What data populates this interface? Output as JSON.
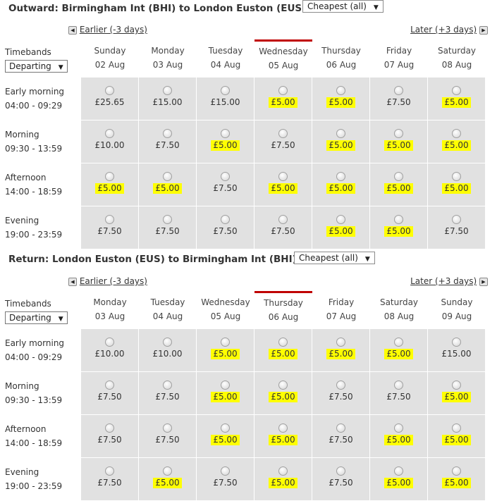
{
  "outward": {
    "title": "Outward: Birmingham Int (BHI) to London Euston (EUS)",
    "filter": "Cheapest (all)",
    "earlier": "Earlier (-3 days)",
    "later": "Later (+3 days)",
    "timebands_label": "Timebands",
    "departing": "Departing",
    "selected_day_index": 3,
    "days": [
      {
        "name": "Sunday",
        "date": "02 Aug"
      },
      {
        "name": "Monday",
        "date": "03 Aug"
      },
      {
        "name": "Tuesday",
        "date": "04 Aug"
      },
      {
        "name": "Wednesday",
        "date": "05 Aug"
      },
      {
        "name": "Thursday",
        "date": "06 Aug"
      },
      {
        "name": "Friday",
        "date": "07 Aug"
      },
      {
        "name": "Saturday",
        "date": "08 Aug"
      }
    ],
    "bands": [
      {
        "name": "Early morning",
        "time": "04:00 - 09:29",
        "prices": [
          "£25.65",
          "£15.00",
          "£15.00",
          "£5.00",
          "£5.00",
          "£7.50",
          "£5.00"
        ],
        "highlight": [
          false,
          false,
          false,
          true,
          true,
          false,
          true
        ]
      },
      {
        "name": "Morning",
        "time": "09:30 - 13:59",
        "prices": [
          "£10.00",
          "£7.50",
          "£5.00",
          "£7.50",
          "£5.00",
          "£5.00",
          "£5.00"
        ],
        "highlight": [
          false,
          false,
          true,
          false,
          true,
          true,
          true
        ]
      },
      {
        "name": "Afternoon",
        "time": "14:00 - 18:59",
        "prices": [
          "£5.00",
          "£5.00",
          "£7.50",
          "£5.00",
          "£5.00",
          "£5.00",
          "£5.00"
        ],
        "highlight": [
          true,
          true,
          false,
          true,
          true,
          true,
          true
        ]
      },
      {
        "name": "Evening",
        "time": "19:00 - 23:59",
        "prices": [
          "£7.50",
          "£7.50",
          "£7.50",
          "£7.50",
          "£5.00",
          "£5.00",
          "£7.50"
        ],
        "highlight": [
          false,
          false,
          false,
          false,
          true,
          true,
          false
        ]
      }
    ]
  },
  "return": {
    "title": "Return: London Euston (EUS) to Birmingham Int (BHI)",
    "filter": "Cheapest (all)",
    "earlier": "Earlier (-3 days)",
    "later": "Later (+3 days)",
    "timebands_label": "Timebands",
    "departing": "Departing",
    "selected_day_index": 3,
    "days": [
      {
        "name": "Monday",
        "date": "03 Aug"
      },
      {
        "name": "Tuesday",
        "date": "04 Aug"
      },
      {
        "name": "Wednesday",
        "date": "05 Aug"
      },
      {
        "name": "Thursday",
        "date": "06 Aug"
      },
      {
        "name": "Friday",
        "date": "07 Aug"
      },
      {
        "name": "Saturday",
        "date": "08 Aug"
      },
      {
        "name": "Sunday",
        "date": "09 Aug"
      }
    ],
    "bands": [
      {
        "name": "Early morning",
        "time": "04:00 - 09:29",
        "prices": [
          "£10.00",
          "£10.00",
          "£5.00",
          "£5.00",
          "£5.00",
          "£5.00",
          "£15.00"
        ],
        "highlight": [
          false,
          false,
          true,
          true,
          true,
          true,
          false
        ]
      },
      {
        "name": "Morning",
        "time": "09:30 - 13:59",
        "prices": [
          "£7.50",
          "£7.50",
          "£5.00",
          "£5.00",
          "£7.50",
          "£7.50",
          "£5.00"
        ],
        "highlight": [
          false,
          false,
          true,
          true,
          false,
          false,
          true
        ]
      },
      {
        "name": "Afternoon",
        "time": "14:00 - 18:59",
        "prices": [
          "£7.50",
          "£7.50",
          "£5.00",
          "£5.00",
          "£7.50",
          "£5.00",
          "£5.00"
        ],
        "highlight": [
          false,
          false,
          true,
          true,
          false,
          true,
          true
        ]
      },
      {
        "name": "Evening",
        "time": "19:00 - 23:59",
        "prices": [
          "£7.50",
          "£5.00",
          "£7.50",
          "£5.00",
          "£7.50",
          "£5.00",
          "£5.00"
        ],
        "highlight": [
          false,
          true,
          false,
          true,
          false,
          true,
          true
        ]
      }
    ]
  },
  "colors": {
    "highlight": "#ffff00",
    "selected_day_bar": "#c00000",
    "cell_background": "#e1e1e1"
  },
  "icons": {
    "earlier": "triangle-left-icon",
    "later": "triangle-right-icon",
    "dropdown": "triangle-down-icon",
    "fare_option": "radio-icon"
  }
}
